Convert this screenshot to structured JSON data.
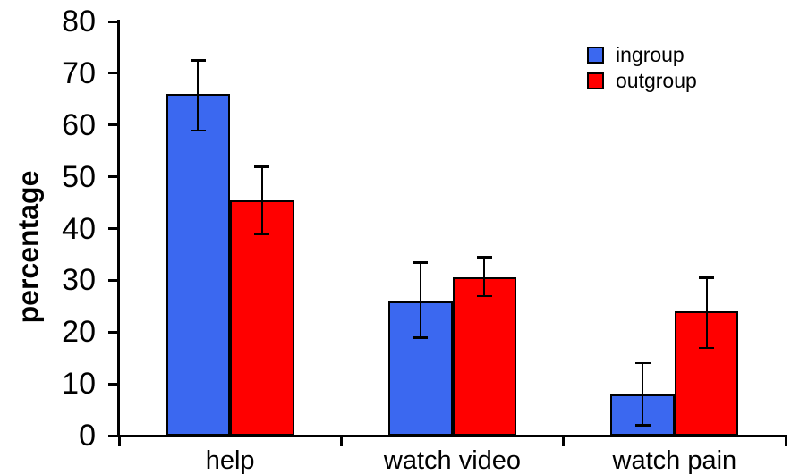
{
  "chart_data": {
    "type": "bar",
    "title": "",
    "xlabel": "",
    "ylabel": "percentage",
    "categories": [
      "help",
      "watch video",
      "watch pain"
    ],
    "series": [
      {
        "name": "ingroup",
        "color": "#3B68F0",
        "values": [
          66,
          26,
          8
        ],
        "error_low": [
          59,
          19,
          2
        ],
        "error_high": [
          72.5,
          33.5,
          14
        ]
      },
      {
        "name": "outgroup",
        "color": "#FF0000",
        "values": [
          45.5,
          30.5,
          24
        ],
        "error_low": [
          39,
          27,
          17
        ],
        "error_high": [
          52,
          34.5,
          30.5
        ]
      }
    ],
    "ylim": [
      0,
      80
    ],
    "yticks": [
      0,
      10,
      20,
      30,
      40,
      50,
      60,
      70,
      80
    ],
    "grid": false,
    "legend_position": "top-right"
  }
}
